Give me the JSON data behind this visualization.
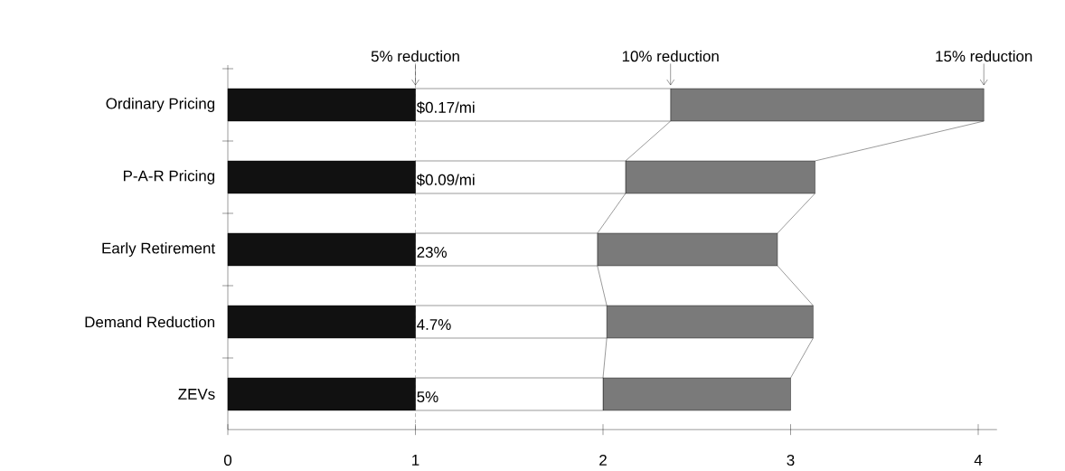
{
  "chart_data": {
    "type": "bar",
    "orientation": "horizontal",
    "stacked": true,
    "categories": [
      "Ordinary Pricing",
      "P-A-R Pricing",
      "Early Retirement",
      "Demand Reduction",
      "ZEVs"
    ],
    "series": [
      {
        "color": "#111111",
        "values": [
          1,
          1,
          1,
          1,
          1
        ]
      },
      {
        "color": "#ffffff",
        "values": [
          1.36,
          1.12,
          0.97,
          1.02,
          1.0
        ]
      },
      {
        "color": "#7a7a7a",
        "values": [
          1.67,
          1.01,
          0.96,
          1.1,
          1.0
        ]
      }
    ],
    "xlim": [
      0,
      4.1
    ],
    "xticks": [
      0,
      1,
      2,
      3,
      4
    ],
    "annotations": [
      {
        "text": "5% reduction",
        "x": 1
      },
      {
        "text": "10% reduction",
        "x": 2.36
      },
      {
        "text": "15% reduction",
        "x": 4.03
      },
      {
        "text": "$0.17/mi",
        "x": 1,
        "y": "Ordinary Pricing"
      },
      {
        "text": "$0.09/mi",
        "x": 1,
        "y": "P-A-R Pricing"
      },
      {
        "text": "23%",
        "x": 1,
        "y": "Early Retirement"
      },
      {
        "text": "4.7%",
        "x": 1,
        "y": "Demand Reduction"
      },
      {
        "text": "5%",
        "x": 1,
        "y": "ZEVs"
      }
    ],
    "ref_lines": [
      {
        "axis": "x",
        "value": 1,
        "line_style": "dashed"
      }
    ]
  }
}
